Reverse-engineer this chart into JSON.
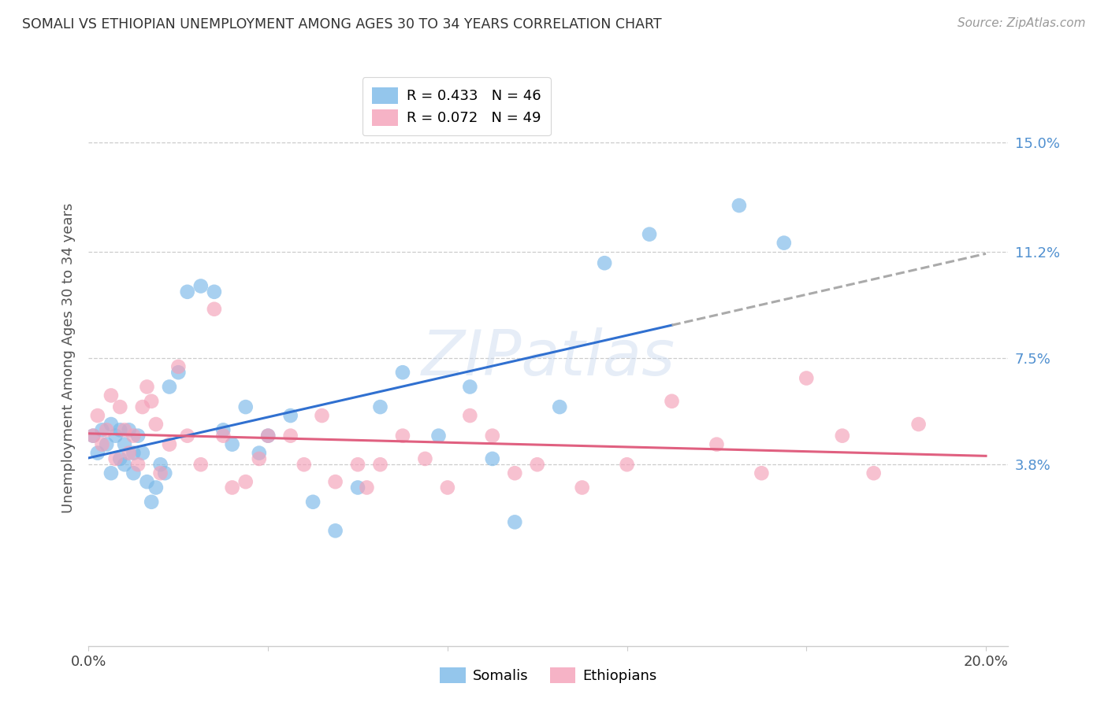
{
  "title": "SOMALI VS ETHIOPIAN UNEMPLOYMENT AMONG AGES 30 TO 34 YEARS CORRELATION CHART",
  "source": "Source: ZipAtlas.com",
  "ylabel": "Unemployment Among Ages 30 to 34 years",
  "xlim": [
    0.0,
    0.205
  ],
  "ylim": [
    -0.025,
    0.175
  ],
  "yticks": [
    0.038,
    0.075,
    0.112,
    0.15
  ],
  "ytick_labels": [
    "3.8%",
    "7.5%",
    "11.2%",
    "15.0%"
  ],
  "xticks": [
    0.0,
    0.04,
    0.08,
    0.12,
    0.16,
    0.2
  ],
  "xtick_labels": [
    "0.0%",
    "",
    "",
    "",
    "",
    "20.0%"
  ],
  "somali_R": 0.433,
  "somali_N": 46,
  "ethiopian_R": 0.072,
  "ethiopian_N": 49,
  "somali_color": "#7ab8e8",
  "ethiopian_color": "#f4a0b8",
  "somali_line_color": "#3070d0",
  "ethiopian_line_color": "#e06080",
  "trend_extend_color": "#aaaaaa",
  "watermark_text": "ZIPatlas",
  "somali_x": [
    0.001,
    0.002,
    0.003,
    0.004,
    0.005,
    0.005,
    0.006,
    0.007,
    0.007,
    0.008,
    0.008,
    0.009,
    0.01,
    0.01,
    0.011,
    0.012,
    0.013,
    0.014,
    0.015,
    0.016,
    0.017,
    0.018,
    0.02,
    0.022,
    0.025,
    0.028,
    0.03,
    0.032,
    0.035,
    0.038,
    0.04,
    0.045,
    0.05,
    0.055,
    0.06,
    0.065,
    0.07,
    0.078,
    0.085,
    0.09,
    0.095,
    0.105,
    0.115,
    0.125,
    0.145,
    0.155
  ],
  "somali_y": [
    0.048,
    0.042,
    0.05,
    0.045,
    0.052,
    0.035,
    0.048,
    0.04,
    0.05,
    0.045,
    0.038,
    0.05,
    0.042,
    0.035,
    0.048,
    0.042,
    0.032,
    0.025,
    0.03,
    0.038,
    0.035,
    0.065,
    0.07,
    0.098,
    0.1,
    0.098,
    0.05,
    0.045,
    0.058,
    0.042,
    0.048,
    0.055,
    0.025,
    0.015,
    0.03,
    0.058,
    0.07,
    0.048,
    0.065,
    0.04,
    0.018,
    0.058,
    0.108,
    0.118,
    0.128,
    0.115
  ],
  "ethiopian_x": [
    0.001,
    0.002,
    0.003,
    0.004,
    0.005,
    0.006,
    0.007,
    0.008,
    0.009,
    0.01,
    0.011,
    0.012,
    0.013,
    0.014,
    0.015,
    0.016,
    0.018,
    0.02,
    0.022,
    0.025,
    0.028,
    0.03,
    0.032,
    0.035,
    0.038,
    0.04,
    0.045,
    0.048,
    0.052,
    0.055,
    0.06,
    0.062,
    0.065,
    0.07,
    0.075,
    0.08,
    0.085,
    0.09,
    0.095,
    0.1,
    0.11,
    0.12,
    0.13,
    0.14,
    0.15,
    0.16,
    0.168,
    0.175,
    0.185
  ],
  "ethiopian_y": [
    0.048,
    0.055,
    0.045,
    0.05,
    0.062,
    0.04,
    0.058,
    0.05,
    0.042,
    0.048,
    0.038,
    0.058,
    0.065,
    0.06,
    0.052,
    0.035,
    0.045,
    0.072,
    0.048,
    0.038,
    0.092,
    0.048,
    0.03,
    0.032,
    0.04,
    0.048,
    0.048,
    0.038,
    0.055,
    0.032,
    0.038,
    0.03,
    0.038,
    0.048,
    0.04,
    0.03,
    0.055,
    0.048,
    0.035,
    0.038,
    0.03,
    0.038,
    0.06,
    0.045,
    0.035,
    0.068,
    0.048,
    0.035,
    0.052
  ],
  "solid_line_end_x": 0.13,
  "dashed_line_start_x": 0.13
}
